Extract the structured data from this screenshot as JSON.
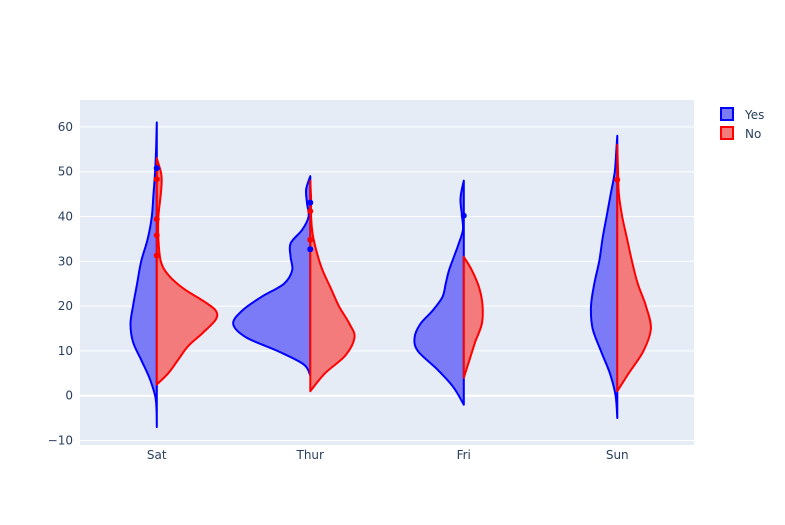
{
  "chart_data": {
    "type": "violin",
    "categories": [
      "Sat",
      "Thur",
      "Fri",
      "Sun"
    ],
    "ylim": [
      -11,
      66
    ],
    "yticks": [
      -10,
      0,
      10,
      20,
      30,
      40,
      50,
      60
    ],
    "grid": true,
    "legend_position": "top-right",
    "series": [
      {
        "name": "Yes",
        "side": "negative",
        "line_color": "#0000ff",
        "fill_color": "#7b7bf8",
        "violins": {
          "Sat": {
            "profile": [
              [
                -7,
                0.0
              ],
              [
                -3,
                0.003
              ],
              [
                0,
                0.02
              ],
              [
                4,
                0.09
              ],
              [
                8,
                0.19
              ],
              [
                12,
                0.29
              ],
              [
                16,
                0.32
              ],
              [
                20,
                0.29
              ],
              [
                25,
                0.24
              ],
              [
                30,
                0.19
              ],
              [
                35,
                0.11
              ],
              [
                40,
                0.06
              ],
              [
                45,
                0.04
              ],
              [
                50,
                0.02
              ],
              [
                55,
                0.008
              ],
              [
                61,
                0.0
              ]
            ],
            "outliers": [
              50.8
            ]
          },
          "Thur": {
            "profile": [
              [
                4.5,
                0.0
              ],
              [
                7,
                0.08
              ],
              [
                10,
                0.4
              ],
              [
                13,
                0.78
              ],
              [
                16,
                0.94
              ],
              [
                19,
                0.83
              ],
              [
                22,
                0.6
              ],
              [
                25,
                0.32
              ],
              [
                28,
                0.22
              ],
              [
                31,
                0.24
              ],
              [
                34,
                0.24
              ],
              [
                37,
                0.1
              ],
              [
                40,
                0.02
              ],
              [
                43,
                0.04
              ],
              [
                46,
                0.05
              ],
              [
                49,
                0.0
              ]
            ],
            "outliers": [
              43.1,
              32.7
            ]
          },
          "Fri": {
            "profile": [
              [
                -2,
                0.0
              ],
              [
                2,
                0.13
              ],
              [
                6,
                0.33
              ],
              [
                10,
                0.56
              ],
              [
                13,
                0.6
              ],
              [
                16,
                0.53
              ],
              [
                19,
                0.38
              ],
              [
                22,
                0.26
              ],
              [
                25,
                0.22
              ],
              [
                28,
                0.18
              ],
              [
                31,
                0.12
              ],
              [
                34,
                0.06
              ],
              [
                37,
                0.01
              ],
              [
                40,
                0.02
              ],
              [
                44,
                0.04
              ],
              [
                48,
                0.0
              ]
            ],
            "outliers": [
              40.2
            ]
          },
          "Sun": {
            "profile": [
              [
                -5,
                0.0
              ],
              [
                0,
                0.02
              ],
              [
                5,
                0.09
              ],
              [
                10,
                0.2
              ],
              [
                15,
                0.3
              ],
              [
                20,
                0.32
              ],
              [
                25,
                0.28
              ],
              [
                30,
                0.22
              ],
              [
                35,
                0.18
              ],
              [
                40,
                0.13
              ],
              [
                45,
                0.08
              ],
              [
                50,
                0.03
              ],
              [
                55,
                0.01
              ],
              [
                58,
                0.0
              ]
            ],
            "outliers": []
          }
        }
      },
      {
        "name": "No",
        "side": "positive",
        "line_color": "#ff0000",
        "fill_color": "#f37b7b",
        "violins": {
          "Sat": {
            "profile": [
              [
                2.5,
                0.0
              ],
              [
                5,
                0.14
              ],
              [
                8,
                0.26
              ],
              [
                11,
                0.38
              ],
              [
                14,
                0.56
              ],
              [
                17,
                0.72
              ],
              [
                19,
                0.72
              ],
              [
                21,
                0.58
              ],
              [
                24,
                0.32
              ],
              [
                27,
                0.14
              ],
              [
                30,
                0.05
              ],
              [
                35,
                0.02
              ],
              [
                40,
                0.02
              ],
              [
                45,
                0.05
              ],
              [
                48,
                0.06
              ],
              [
                50,
                0.05
              ],
              [
                53,
                0.0
              ]
            ],
            "outliers": [
              48.3,
              39.4,
              35.8,
              31.3
            ]
          },
          "Thur": {
            "profile": [
              [
                1,
                0.0
              ],
              [
                5,
                0.18
              ],
              [
                9,
                0.43
              ],
              [
                13,
                0.54
              ],
              [
                16,
                0.48
              ],
              [
                20,
                0.35
              ],
              [
                24,
                0.25
              ],
              [
                28,
                0.15
              ],
              [
                32,
                0.08
              ],
              [
                36,
                0.03
              ],
              [
                40,
                0.01
              ],
              [
                44,
                0.01
              ],
              [
                48,
                0.0
              ]
            ],
            "outliers": [
              41.2,
              34.8
            ]
          },
          "Fri": {
            "profile": [
              [
                4,
                0.0
              ],
              [
                8,
                0.07
              ],
              [
                12,
                0.14
              ],
              [
                16,
                0.22
              ],
              [
                20,
                0.23
              ],
              [
                24,
                0.19
              ],
              [
                28,
                0.1
              ],
              [
                31,
                0.0
              ]
            ],
            "outliers": []
          },
          "Sun": {
            "profile": [
              [
                1,
                0.0
              ],
              [
                5,
                0.14
              ],
              [
                10,
                0.32
              ],
              [
                15,
                0.41
              ],
              [
                20,
                0.35
              ],
              [
                25,
                0.25
              ],
              [
                30,
                0.18
              ],
              [
                35,
                0.12
              ],
              [
                40,
                0.06
              ],
              [
                45,
                0.02
              ],
              [
                50,
                0.01
              ],
              [
                56,
                0.0
              ]
            ],
            "outliers": [
              48.2
            ]
          }
        }
      }
    ]
  }
}
